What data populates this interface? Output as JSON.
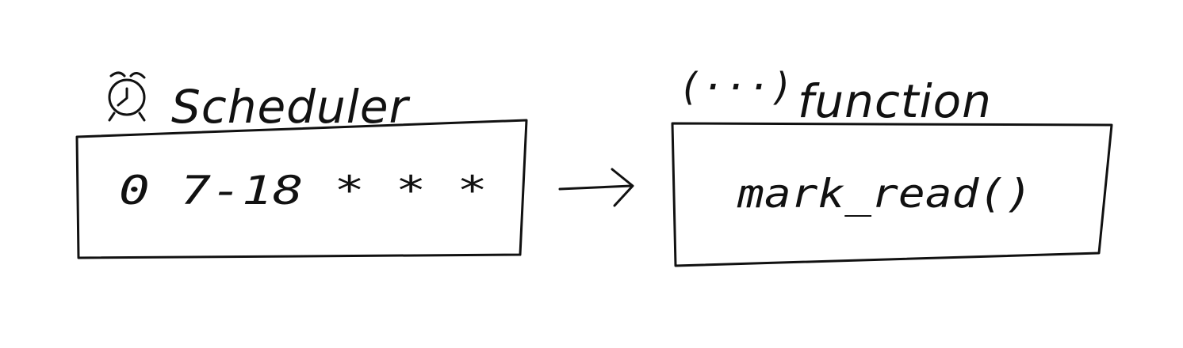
{
  "scheduler": {
    "label": "Scheduler",
    "icon": "alarm-clock-icon",
    "cron_expression": "0 7-18 * * *"
  },
  "function": {
    "label": "function",
    "icon": "parentheses-dots-icon",
    "icon_text": "(···)",
    "call": "mark_read()"
  },
  "connector": {
    "icon": "right-arrow-icon"
  }
}
